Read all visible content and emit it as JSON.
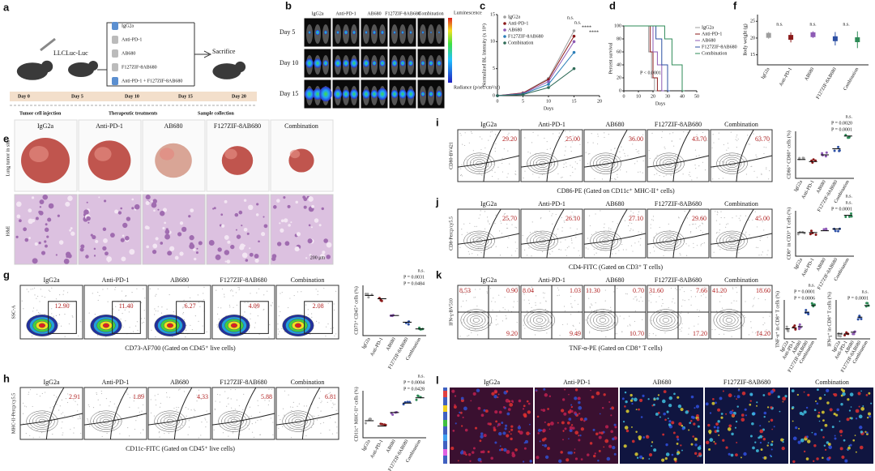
{
  "groups": [
    "IgG2a",
    "Anti-PD-1",
    "AB680",
    "F127ZIF-8AB680",
    "Combination"
  ],
  "a": {
    "letter": "a",
    "mouse_label": "LLCLuc-Luc",
    "treatments": [
      "IgG2a",
      "Anti-PD-1",
      "AB680",
      "F127ZIF-8AB680",
      "Anti-PD-1 + F127ZIF-8AB680"
    ],
    "end_label": "Sacrifice",
    "timeline": [
      "Day 0",
      "Day 5",
      "Day 10",
      "Day 15",
      "Day 20"
    ],
    "steps": [
      "Tumor cell injection",
      "Therapeutic treatments",
      "Sample collection"
    ]
  },
  "b": {
    "letter": "b",
    "rows": [
      "Day 5",
      "Day 10",
      "Day 15"
    ],
    "scale_title": "Luminescence",
    "scale_unit": "Radiance (p/sec/cm²/sr)"
  },
  "c": {
    "letter": "c",
    "x_label": "Days",
    "y_label": "Normalized BL Intensity (x 10⁶)",
    "xlim": [
      0,
      20
    ],
    "ylim": [
      0,
      15
    ],
    "xticks": [
      0,
      5,
      10,
      15,
      20
    ],
    "yticks": [
      0,
      5,
      10,
      15
    ],
    "x": [
      0,
      5,
      10,
      15
    ],
    "series": [
      {
        "name": "IgG2a",
        "color": "#9e9e9e",
        "values": [
          0,
          0.5,
          3.2,
          12
        ]
      },
      {
        "name": "Anti-PD-1",
        "color": "#8b1a1a",
        "values": [
          0,
          0.5,
          3,
          11
        ]
      },
      {
        "name": "AB680",
        "color": "#8e5bb5",
        "values": [
          0,
          0.4,
          2.6,
          10
        ]
      },
      {
        "name": "F127ZIF-8AB680",
        "color": "#2c7fb8",
        "values": [
          0,
          0.3,
          2.1,
          8
        ]
      },
      {
        "name": "Combination",
        "color": "#2e6b57",
        "values": [
          0,
          0.2,
          1.5,
          5
        ]
      }
    ],
    "significance": [
      "n.s.",
      "n.s.",
      "****",
      "****"
    ]
  },
  "d": {
    "letter": "d",
    "x_label": "Days",
    "y_label": "Percent survival",
    "p_label": "P < 0.0001",
    "xlim": [
      0,
      50
    ],
    "ylim": [
      0,
      100
    ],
    "xticks": [
      0,
      10,
      20,
      30,
      40,
      50
    ],
    "yticks": [
      0,
      20,
      40,
      60,
      80,
      100
    ],
    "series": [
      {
        "name": "IgG2a",
        "color": "#9e9e9e",
        "x": [
          0,
          17,
          19,
          21
        ],
        "values": [
          100,
          60,
          20,
          0
        ]
      },
      {
        "name": "Anti-PD-1",
        "color": "#8b1a1a",
        "x": [
          0,
          18,
          20,
          23
        ],
        "values": [
          100,
          60,
          20,
          0
        ]
      },
      {
        "name": "AB680",
        "color": "#8e5bb5",
        "x": [
          0,
          20,
          23,
          26
        ],
        "values": [
          100,
          60,
          40,
          0
        ]
      },
      {
        "name": "F127ZIF-8AB680",
        "color": "#2c4fa3",
        "x": [
          0,
          22,
          26,
          30
        ],
        "values": [
          100,
          80,
          40,
          0
        ]
      },
      {
        "name": "Combination",
        "color": "#2e8b57",
        "x": [
          0,
          28,
          33,
          40
        ],
        "values": [
          100,
          80,
          40,
          0
        ]
      }
    ]
  },
  "f": {
    "letter": "f",
    "y_label": "Body weight (g)",
    "ylim": [
      12,
      27
    ],
    "yticks": [
      15,
      20,
      25
    ],
    "means": [
      20.8,
      20.2,
      21,
      19.8,
      19.5
    ],
    "errors": [
      1,
      1.5,
      1,
      2,
      2.5
    ],
    "p_labels": [
      "n.s.",
      "n.s.",
      "n.s."
    ]
  },
  "e": {
    "letter": "e",
    "row_labels": [
      "Lung tumor in situ",
      "H&E"
    ],
    "scale_bar": "200 μm"
  },
  "i": {
    "letter": "i",
    "y_label": "CD80-BV421",
    "x_label": "CD86-PE (Gated on CD11c⁺ MHC-II⁺ cells)",
    "gate_labels": [
      "29.20",
      "25.00",
      "36.00",
      "43.70",
      "63.70"
    ],
    "dot": {
      "y_label": "CD86⁺ CD80⁺ cells (%)",
      "p_labels": [
        "n.s.",
        "P = 0.0020",
        "P = 0.0001"
      ],
      "means": [
        28,
        25,
        35,
        44,
        63
      ],
      "ylim": [
        0,
        70
      ]
    }
  },
  "j": {
    "letter": "j",
    "y_label": "CD8-Percp/cy5.5",
    "x_label": "CD4-FITC (Gated on CD3⁺ T cells)",
    "gate_labels": [
      "25.70",
      "26.10",
      "27.10",
      "29.60",
      "45.00"
    ],
    "dot": {
      "y_label": "CD8⁺ in CD3⁺ T cells (%)",
      "p_labels": [
        "n.s.",
        "n.s.",
        "P = 0.0001"
      ],
      "means": [
        26,
        26,
        28,
        30,
        45
      ],
      "ylim": [
        0,
        50
      ]
    }
  },
  "g": {
    "letter": "g",
    "y_label": "SSC-A",
    "x_label": "CD73-AF700 (Gated on CD45⁺ live cells)",
    "gate_labels": [
      "12.90",
      "11.40",
      "6.27",
      "4.09",
      "2.08"
    ],
    "dot": {
      "y_label": "CD73⁺ CD45⁺ cells (%)",
      "p_labels": [
        "n.s.",
        "P = 0.0031",
        "P = 0.0484"
      ],
      "means": [
        12,
        11,
        6,
        4,
        2
      ],
      "ylim": [
        0,
        15
      ]
    }
  },
  "k": {
    "letter": "k",
    "y_label": "IFN-γ-BV510",
    "x_label": "TNF-α-PE (Gated on CD8⁺ T cells)",
    "quadrants": [
      [
        "8.53",
        "0.90",
        "9.20"
      ],
      [
        "8.04",
        "1.03",
        "9.49"
      ],
      [
        "11.30",
        "0.70",
        "10.70"
      ],
      [
        "31.60",
        "7.66",
        "17.20"
      ],
      [
        "41.20",
        "18.60",
        "14.20"
      ]
    ],
    "dots": [
      {
        "y_label": "TNF-α⁺ in CD8⁺ T cells (%)",
        "p_labels": [
          "n.s.",
          "P = 0.0001",
          "P = 0.0006"
        ],
        "means": [
          9,
          10,
          11,
          24,
          30
        ],
        "ylim": [
          0,
          35
        ]
      },
      {
        "y_label": "IFN-γ⁺ in CD8⁺ T cells (%)",
        "p_labels": [
          "n.s.",
          "P = 0.0001"
        ],
        "means": [
          9,
          9,
          12,
          39,
          60
        ],
        "ylim": [
          0,
          70
        ]
      }
    ]
  },
  "h": {
    "letter": "h",
    "y_label": "MHC-II-Percp/cy5.5",
    "x_label": "CD11c-FITC (Gated on CD45⁺ live cells)",
    "gate_labels": [
      "2.91",
      "1.89",
      "4.33",
      "5.88",
      "6.81"
    ],
    "dot": {
      "y_label": "CD11c⁺ MHC-II⁺ cells (%)",
      "p_labels": [
        "n.s.",
        "P = 0.0004",
        "P = 0.0428"
      ],
      "means": [
        2.9,
        2,
        4.3,
        5.9,
        6.8
      ],
      "ylim": [
        0,
        8
      ]
    }
  },
  "l": {
    "letter": "l"
  }
}
